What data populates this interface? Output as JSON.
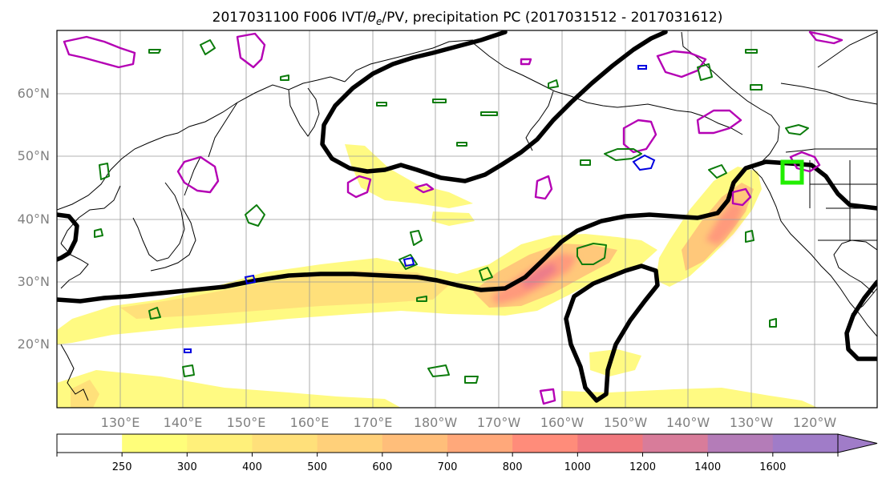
{
  "title": {
    "prefix": "2017031100 F006 IVT/",
    "theta": "θ",
    "theta_sub": "e",
    "suffix": "/PV, precipitation PC (2017031512 - 2017031612)"
  },
  "lat_labels": [
    "60°N",
    "50°N",
    "40°N",
    "30°N",
    "20°N"
  ],
  "lon_labels": [
    "130°E",
    "140°E",
    "150°E",
    "160°E",
    "170°E",
    "180°W",
    "170°W",
    "160°W",
    "150°W",
    "140°W",
    "130°W",
    "120°W"
  ],
  "colorbar": {
    "ticks": [
      "250",
      "300",
      "400",
      "500",
      "600",
      "700",
      "800",
      "1000",
      "1200",
      "1400",
      "1600"
    ],
    "colors": [
      "#ffffff",
      "#fffe7a",
      "#fff07a",
      "#ffe07a",
      "#ffd07a",
      "#ffbe7a",
      "#ffa87a",
      "#ff8c7a",
      "#f0787e",
      "#d87c9a",
      "#b47cb8",
      "#a07cc8"
    ],
    "extend": "max"
  },
  "colors": {
    "jet": "#000000",
    "pv_contour": "#b400b4",
    "theta_e_contour": "#0c7c0c",
    "blue_contour": "#0000e0",
    "target_box": "#22ee00"
  }
}
